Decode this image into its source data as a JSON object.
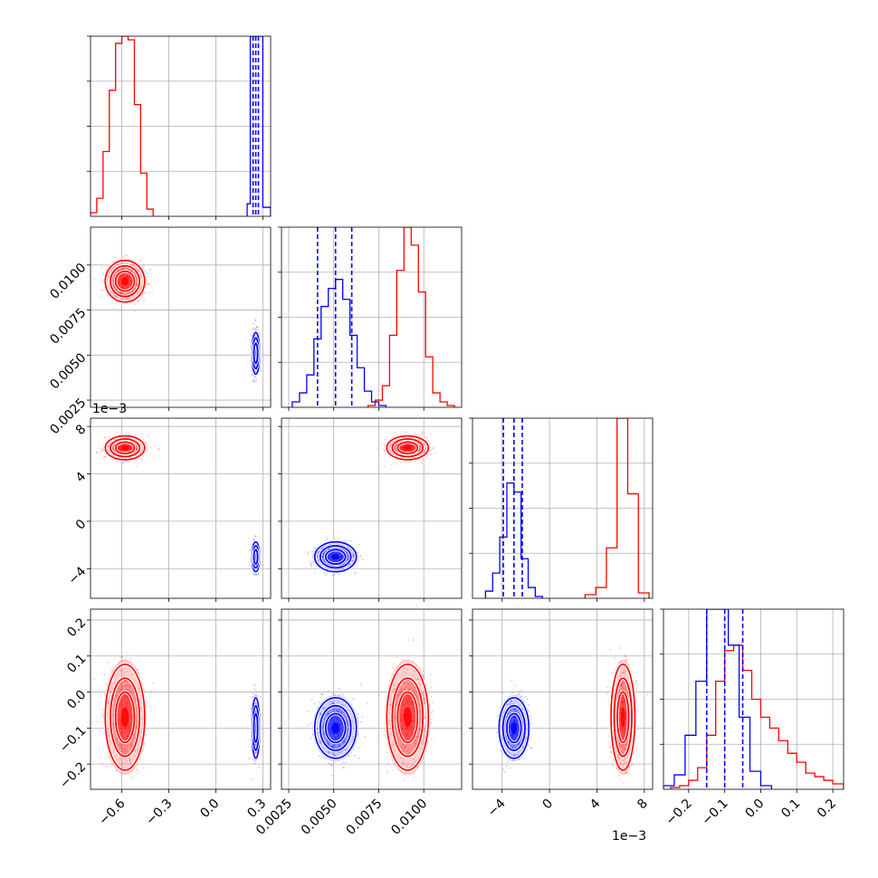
{
  "colors": {
    "red": "#ff0000",
    "blue": "#0000ff",
    "grid": "#b0b0b0",
    "axis": "#000000"
  },
  "chart_data": {
    "type": "corner",
    "grid": true,
    "series": [
      {
        "color": "#ff0000",
        "center": [
          -0.58,
          0.0091,
          0.0062,
          -0.07
        ],
        "spread": [
          0.06,
          0.00055,
          0.00048,
          0.07
        ]
      },
      {
        "color": "#0000ff",
        "center": [
          0.255,
          0.0051,
          -0.003,
          -0.1
        ],
        "spread": [
          0.012,
          0.00055,
          0.0006,
          0.04
        ]
      }
    ],
    "quantile_lines": {
      "color": "#0000ff",
      "style": "dashed",
      "values": [
        [
          0.238,
          0.255,
          0.272
        ],
        [
          0.0041,
          0.0051,
          0.006
        ],
        [
          -0.0039,
          -0.003,
          -0.0023
        ],
        [
          -0.15,
          -0.1,
          -0.05
        ]
      ]
    },
    "params": [
      {
        "range": [
          -0.8,
          0.35
        ],
        "ticks": [
          -0.6,
          -0.3,
          0.0,
          0.3
        ],
        "ticklabels": [
          "−0.6",
          "−0.3",
          "0.0",
          "0.3"
        ]
      },
      {
        "range": [
          0.0021,
          0.0121
        ],
        "ticks": [
          0.0025,
          0.005,
          0.0075,
          0.01
        ],
        "ticklabels": [
          "0.0025",
          "0.0050",
          "0.0075",
          "0.0100"
        ]
      },
      {
        "range": [
          -0.0065,
          0.0087
        ],
        "ticks": [
          -0.004,
          0.0,
          0.004,
          0.008
        ],
        "ticklabels": [
          "−4",
          "0",
          "4",
          "8"
        ],
        "offset_text": "1e−3"
      },
      {
        "range": [
          -0.27,
          0.23
        ],
        "ticks": [
          -0.2,
          -0.1,
          0.0,
          0.1,
          0.2
        ],
        "ticklabels": [
          "−0.2",
          "−0.1",
          "0.0",
          "0.1",
          "0.2"
        ]
      }
    ],
    "histograms": [
      {
        "param": 0,
        "red": {
          "edges": [
            -0.8,
            -0.76,
            -0.72,
            -0.68,
            -0.64,
            -0.6,
            -0.56,
            -0.52,
            -0.48,
            -0.44,
            -0.4
          ],
          "counts": [
            2,
            10,
            36,
            70,
            96,
            100,
            98,
            62,
            24,
            4
          ]
        },
        "blue": {
          "edges": [
            0.2,
            0.22,
            0.24,
            0.26,
            0.28,
            0.3,
            0.35
          ],
          "counts": [
            7,
            100,
            100,
            100,
            100,
            5
          ]
        }
      },
      {
        "param": 1,
        "red": {
          "edges": [
            0.0069,
            0.0073,
            0.0077,
            0.0081,
            0.0085,
            0.0089,
            0.0093,
            0.0097,
            0.0101,
            0.0105,
            0.0109,
            0.0113,
            0.0117
          ],
          "counts": [
            1,
            4,
            12,
            40,
            76,
            100,
            90,
            64,
            28,
            8,
            3,
            1
          ]
        },
        "blue": {
          "edges": [
            0.0027,
            0.0031,
            0.0035,
            0.0039,
            0.0043,
            0.0047,
            0.0051,
            0.0055,
            0.0059,
            0.0063,
            0.0067,
            0.0071,
            0.0075,
            0.0079
          ],
          "counts": [
            3,
            8,
            18,
            38,
            56,
            66,
            71,
            60,
            40,
            22,
            9,
            3,
            1
          ]
        }
      },
      {
        "param": 2,
        "red": {
          "edges": [
            0.003,
            0.0039,
            0.0048,
            0.0057,
            0.0066,
            0.0075,
            0.0084
          ],
          "counts": [
            2,
            6,
            28,
            100,
            58,
            3
          ]
        },
        "blue": {
          "edges": [
            -0.0054,
            -0.0048,
            -0.0042,
            -0.0036,
            -0.003,
            -0.0024,
            -0.0018,
            -0.0012,
            -0.0006
          ],
          "counts": [
            4,
            14,
            34,
            64,
            59,
            22,
            6,
            1
          ]
        }
      },
      {
        "param": 3,
        "red": {
          "edges": [
            -0.25,
            -0.225,
            -0.2,
            -0.175,
            -0.15,
            -0.125,
            -0.1,
            -0.075,
            -0.05,
            -0.025,
            0.0,
            0.025,
            0.05,
            0.075,
            0.1,
            0.125,
            0.15,
            0.175,
            0.2,
            0.23
          ],
          "counts": [
            1,
            2,
            5,
            12,
            30,
            60,
            77,
            80,
            66,
            50,
            40,
            34,
            27,
            20,
            15,
            9,
            7,
            5,
            3
          ]
        },
        "blue": {
          "edges": [
            -0.27,
            -0.24,
            -0.21,
            -0.18,
            -0.15,
            -0.12,
            -0.09,
            -0.06,
            -0.03,
            0.0,
            0.03
          ],
          "counts": [
            2,
            8,
            30,
            60,
            100,
            100,
            80,
            40,
            10,
            2
          ]
        }
      }
    ]
  }
}
